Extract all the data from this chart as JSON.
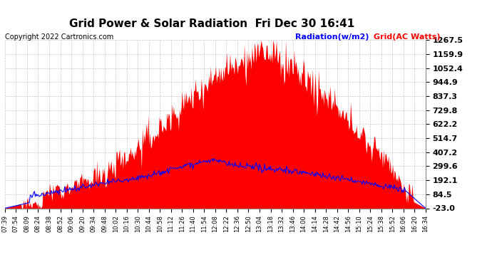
{
  "title": "Grid Power & Solar Radiation  Fri Dec 30 16:41",
  "copyright": "Copyright 2022 Cartronics.com",
  "legend_radiation": "Radiation(w/m2)",
  "legend_grid": "Grid(AC Watts)",
  "yticks": [
    1267.5,
    1159.9,
    1052.4,
    944.9,
    837.3,
    729.8,
    622.2,
    514.7,
    407.2,
    299.6,
    192.1,
    84.5,
    -23.0
  ],
  "xtick_labels": [
    "07:39",
    "07:54",
    "08:09",
    "08:24",
    "08:38",
    "08:52",
    "09:06",
    "09:20",
    "09:34",
    "09:48",
    "10:02",
    "10:16",
    "10:30",
    "10:44",
    "10:58",
    "11:12",
    "11:26",
    "11:40",
    "11:54",
    "12:08",
    "12:22",
    "12:36",
    "12:50",
    "13:04",
    "13:18",
    "13:32",
    "13:46",
    "14:00",
    "14:14",
    "14:28",
    "14:42",
    "14:56",
    "15:10",
    "15:24",
    "15:38",
    "15:52",
    "16:06",
    "16:20",
    "16:34"
  ],
  "ymin": -23.0,
  "ymax": 1267.5,
  "bg_color": "#ffffff",
  "grid_color": "#c8c8c8",
  "fill_color": "#ff0000",
  "line_color_radiation": "#0000ff",
  "line_color_grid": "#ff0000",
  "title_fontsize": 11,
  "copyright_fontsize": 7,
  "legend_fontsize": 8,
  "ytick_fontsize": 8,
  "xtick_fontsize": 6
}
